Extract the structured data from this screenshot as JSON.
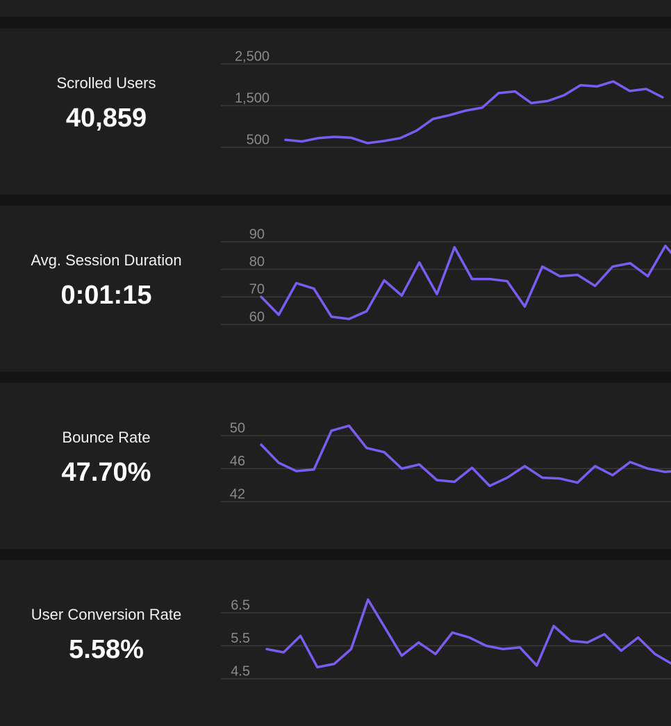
{
  "colors": {
    "series": "#7b5cf0",
    "panel_bg": "#1f1f1f",
    "page_bg": "#141414"
  },
  "panels": [
    {
      "label": "Scrolled Users",
      "value": "40,859"
    },
    {
      "label": "Avg. Session Duration",
      "value": "0:01:15"
    },
    {
      "label": "Bounce Rate",
      "value": "47.70%"
    },
    {
      "label": "User Conversion Rate",
      "value": "5.58%"
    }
  ],
  "chart_data": [
    {
      "type": "line",
      "title": "Scrolled Users",
      "ylim": [
        0,
        2500
      ],
      "yticks": [
        500,
        1500,
        2500
      ],
      "ytick_labels": [
        "500",
        "1,500",
        "2,500"
      ],
      "grid": true,
      "y": [
        680,
        640,
        720,
        750,
        730,
        600,
        650,
        720,
        900,
        1180,
        1270,
        1380,
        1450,
        1800,
        1840,
        1560,
        1610,
        1750,
        1990,
        1960,
        2080,
        1850,
        1900,
        1700
      ]
    },
    {
      "type": "line",
      "title": "Avg. Session Duration",
      "ylim": [
        55,
        90
      ],
      "yticks": [
        60,
        70,
        80,
        90
      ],
      "ytick_labels": [
        "60",
        "70",
        "80",
        "90"
      ],
      "grid": true,
      "y": [
        70,
        63.5,
        75,
        73,
        62.8,
        62,
        64.8,
        76,
        70.5,
        82.5,
        71,
        88,
        76.5,
        76.5,
        75.7,
        66.5,
        81,
        77.5,
        78,
        74,
        81,
        82.2,
        77.5,
        88.5,
        81
      ]
    },
    {
      "type": "line",
      "title": "Bounce Rate",
      "ylim": [
        40,
        50
      ],
      "yticks": [
        42,
        46,
        50
      ],
      "ytick_labels": [
        "42",
        "46",
        "50"
      ],
      "grid": true,
      "y": [
        48.9,
        46.7,
        45.7,
        45.9,
        50.6,
        51.2,
        48.5,
        48,
        46,
        46.5,
        44.6,
        44.4,
        46.1,
        43.9,
        44.9,
        46.3,
        44.9,
        44.8,
        44.3,
        46.3,
        45.2,
        46.8,
        46,
        45.6,
        45.8
      ]
    },
    {
      "type": "line",
      "title": "User Conversion Rate",
      "ylim": [
        4.5,
        6.5
      ],
      "yticks": [
        4.5,
        5.5,
        6.5
      ],
      "ytick_labels": [
        "4.5",
        "5.5",
        "6.5"
      ],
      "grid": true,
      "y": [
        5.4,
        5.3,
        5.8,
        4.85,
        4.95,
        5.4,
        6.9,
        6.05,
        5.2,
        5.6,
        5.25,
        5.9,
        5.75,
        5.5,
        5.4,
        5.45,
        4.9,
        6.1,
        5.65,
        5.6,
        5.85,
        5.35,
        5.75,
        5.25,
        4.95
      ]
    }
  ]
}
